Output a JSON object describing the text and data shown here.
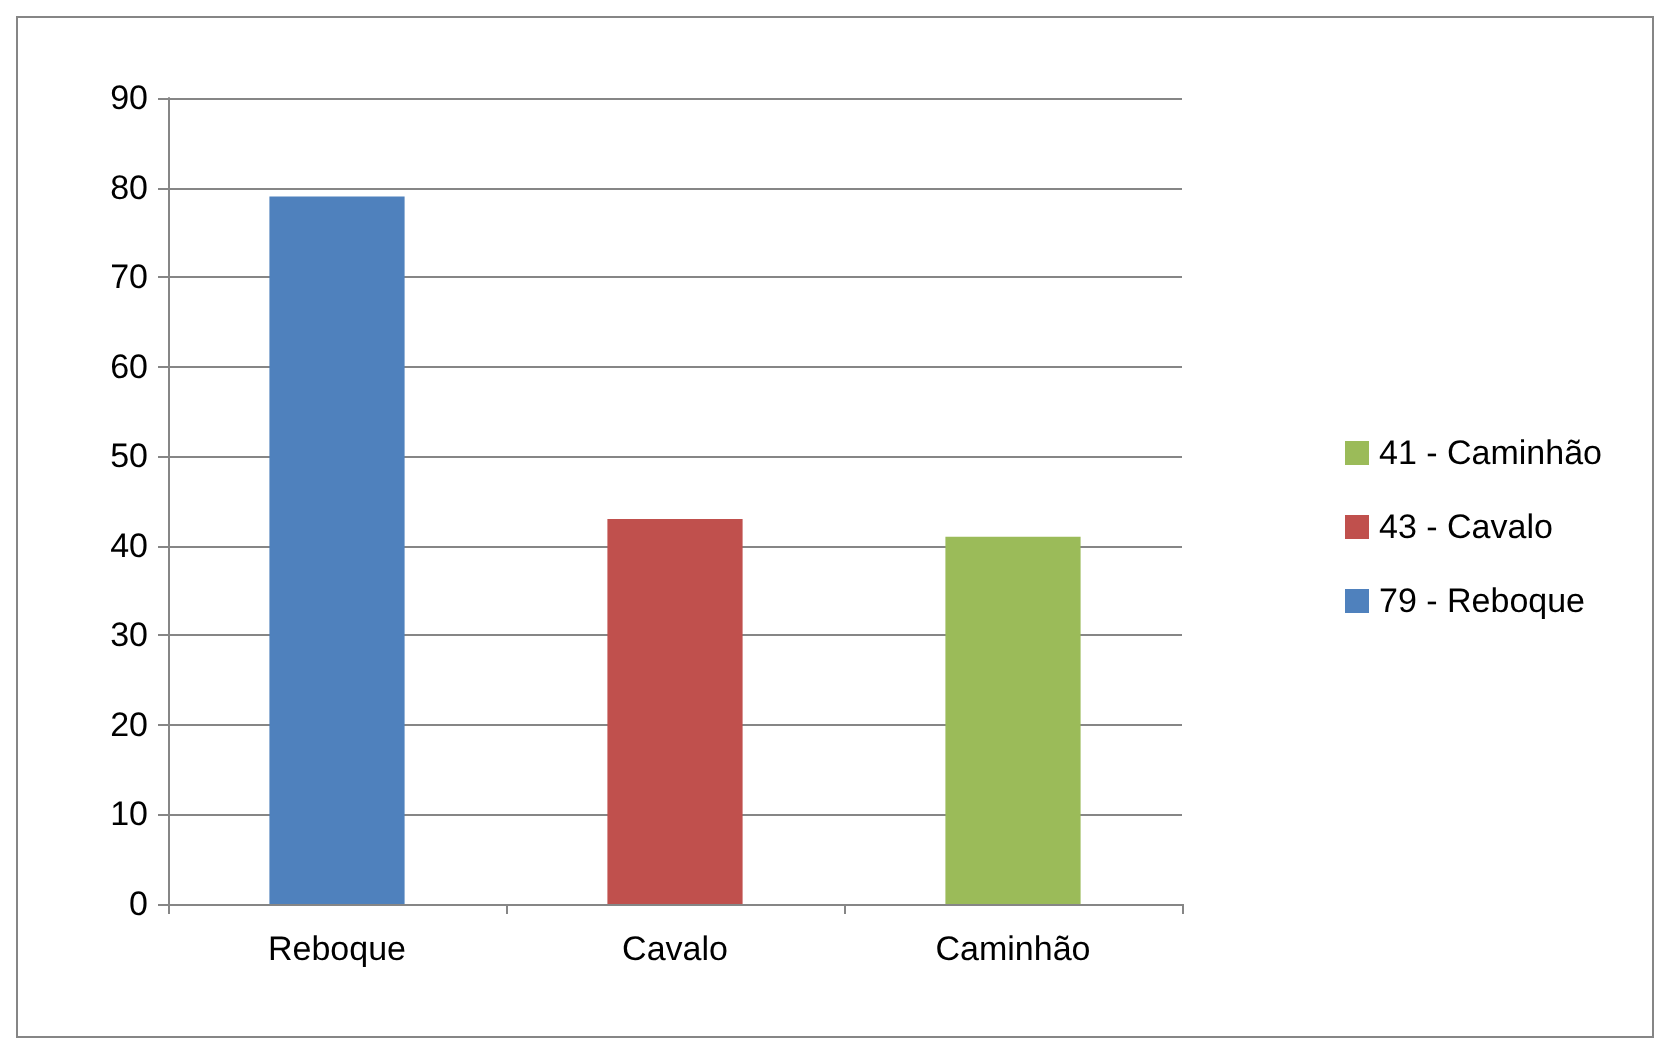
{
  "chart_data": {
    "type": "bar",
    "categories": [
      "Reboque",
      "Cavalo",
      "Caminhão"
    ],
    "series": [
      {
        "name": "79 - Reboque",
        "color": "#4f81bd",
        "values": [
          79,
          null,
          null
        ]
      },
      {
        "name": "43 - Cavalo",
        "color": "#c0504d",
        "values": [
          null,
          43,
          null
        ]
      },
      {
        "name": "41 - Caminhão",
        "color": "#9bbb59",
        "values": [
          null,
          null,
          41
        ]
      }
    ],
    "ylim": [
      0,
      90
    ],
    "yticks": [
      0,
      10,
      20,
      30,
      40,
      50,
      60,
      70,
      80,
      90
    ],
    "grid": "y",
    "legend": "right"
  }
}
